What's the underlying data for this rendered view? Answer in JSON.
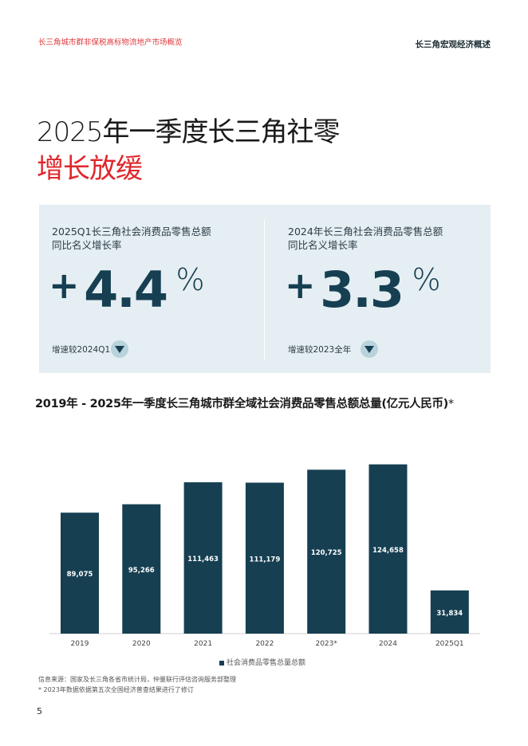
{
  "header": {
    "left": "长三角城市群非保税高标物流地产市场概览",
    "right": "长三角宏观经济概述"
  },
  "title": {
    "line1": "2025年一季度长三角社零",
    "line2": "增长放缓"
  },
  "kpis": [
    {
      "label_line1": "2025Q1长三角社会消费品零售总额",
      "label_line2": "同比名义增长率",
      "sign": "+",
      "value": "4.4",
      "unit": "%",
      "footnote": "增速较2024Q1",
      "trend": "down-arrow-icon"
    },
    {
      "label_line1": "2024年长三角社会消费品零售总额",
      "label_line2": "同比名义增长率",
      "sign": "+",
      "value": "3.3",
      "unit": "%",
      "footnote": "增速较2023全年",
      "trend": "down-arrow-icon"
    }
  ],
  "chart_data": {
    "type": "bar",
    "title": "2019年 - 2025年一季度长三角城市群全域社会消费品零售总额总量(亿元人民币)",
    "title_suffix": "*",
    "categories": [
      "2019",
      "2020",
      "2021",
      "2022",
      "2023*",
      "2024",
      "2025Q1"
    ],
    "series": [
      {
        "name": "社会消费品零售总量总额",
        "values": [
          89075,
          95266,
          111463,
          111179,
          120725,
          124658,
          31834
        ]
      }
    ],
    "data_labels": [
      "89,075",
      "95,266",
      "111,463",
      "111,179",
      "120,725",
      "124,658",
      "31,834"
    ],
    "ylim": [
      0,
      135000
    ],
    "grid": false,
    "legend_position": "bottom",
    "bar_color": "#163f52"
  },
  "notes": {
    "source": "信息来源：国家及长三角各省市统计局，仲量联行评估咨询服务部整理",
    "revision": "* 2023年数据依据第五次全国经济普查结果进行了修订"
  },
  "page_number": "5",
  "colors": {
    "accent_red": "#e0262b",
    "navy": "#163f52",
    "panel_bg": "#e5eef2"
  }
}
